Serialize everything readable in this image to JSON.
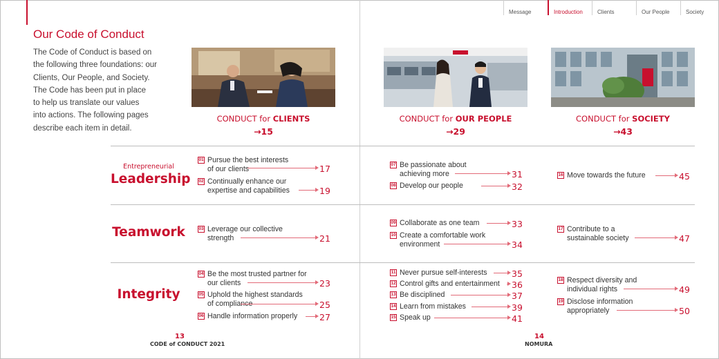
{
  "nav": {
    "message": "Message",
    "introduction": "Introduction",
    "clients": "Clients",
    "our_people": "Our People",
    "society": "Society"
  },
  "page_title": "Our Code of Conduct",
  "intro_lines": [
    "The Code of Conduct is based on",
    "the following three foundations: our",
    "Clients, Our People, and Society.",
    "The Code has been put in place",
    "to help us translate our values",
    "into actions. The following pages",
    "describe each item in detail."
  ],
  "columns": [
    {
      "prefix": "CONDUCT for ",
      "name": "CLIENTS",
      "page": "→15"
    },
    {
      "prefix": "CONDUCT for ",
      "name": "OUR PEOPLE",
      "page": "→29"
    },
    {
      "prefix": "CONDUCT for ",
      "name": "SOCIETY",
      "page": "→43"
    }
  ],
  "rows": {
    "leadership": {
      "small": "Entrepreneurial",
      "big": "Leadership"
    },
    "teamwork": {
      "big": "Teamwork"
    },
    "integrity": {
      "big": "Integrity"
    }
  },
  "items": {
    "i01": {
      "num": "01",
      "line1": "Pursue the best interests",
      "line2": "of our clients",
      "page": "17"
    },
    "i02": {
      "num": "02",
      "line1": "Continually enhance our",
      "line2": "expertise and capabilities",
      "page": "19"
    },
    "i03": {
      "num": "03",
      "line1": "Leverage our collective",
      "line2": "strength",
      "page": "21"
    },
    "i04": {
      "num": "04",
      "line1": "Be the most trusted partner for",
      "line2": "our clients",
      "page": "23"
    },
    "i05": {
      "num": "05",
      "line1": "Uphold the highest standards",
      "line2": "of compliance",
      "page": "25"
    },
    "i06": {
      "num": "06",
      "line1": "Handle information properly",
      "page": "27"
    },
    "i07": {
      "num": "07",
      "line1": "Be passionate about",
      "line2": "achieving more",
      "page": "31"
    },
    "i08": {
      "num": "08",
      "line1": "Develop our people",
      "page": "32"
    },
    "i09": {
      "num": "09",
      "line1": "Collaborate as one team",
      "page": "33"
    },
    "i10": {
      "num": "10",
      "line1": "Create a comfortable work",
      "line2": "environment",
      "page": "34"
    },
    "i11": {
      "num": "11",
      "line1": "Never pursue self-interests",
      "page": "35"
    },
    "i12": {
      "num": "12",
      "line1": "Control gifts and entertainment",
      "page": "36"
    },
    "i13": {
      "num": "13",
      "line1": "Be disciplined",
      "page": "37"
    },
    "i14": {
      "num": "14",
      "line1": "Learn from mistakes",
      "page": "39"
    },
    "i15": {
      "num": "15",
      "line1": "Speak up",
      "page": "41"
    },
    "i16": {
      "num": "16",
      "line1": "Move towards the future",
      "page": "45"
    },
    "i17": {
      "num": "17",
      "line1": "Contribute to a",
      "line2": "sustainable society",
      "page": "47"
    },
    "i18": {
      "num": "18",
      "line1": "Respect diversity and",
      "line2": "individual rights",
      "page": "49"
    },
    "i19": {
      "num": "19",
      "line1": "Disclose information",
      "line2": "appropriately",
      "page": "50"
    }
  },
  "footer": {
    "left_page": "13",
    "left_text": "CODE of CONDUCT 2021",
    "right_page": "14",
    "right_text": "NOMURA"
  },
  "colors": {
    "accent": "#c8102e",
    "leader": "#e26a78",
    "rule": "#bdbdbd"
  }
}
